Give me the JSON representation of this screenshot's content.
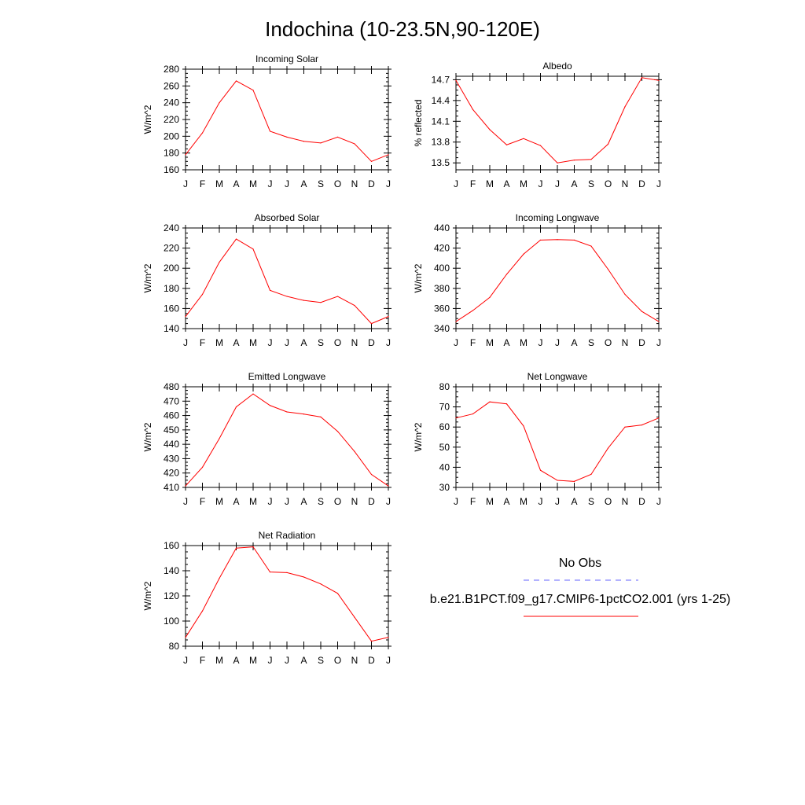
{
  "title": "Indochina (10-23.5N,90-120E)",
  "legend": {
    "obs_label": "No Obs",
    "obs_color": "#6666ff",
    "model_label": "b.e21.B1PCT.f09_g17.CMIP6-1pctCO2.001 (yrs 1-25)",
    "model_color": "#ff0000"
  },
  "chart_data": [
    {
      "type": "line",
      "title": "Incoming Solar",
      "ylabel": "W/m^2",
      "categories": [
        "J",
        "F",
        "M",
        "A",
        "M",
        "J",
        "J",
        "A",
        "S",
        "O",
        "N",
        "D",
        "J"
      ],
      "ylim": [
        160,
        280
      ],
      "yticks": [
        "160",
        "180",
        "200",
        "220",
        "240",
        "260",
        "280"
      ],
      "series": [
        {
          "values": [
            178,
            204,
            240,
            266,
            255,
            206,
            199,
            194,
            192,
            199,
            191,
            170,
            178
          ]
        }
      ]
    },
    {
      "type": "line",
      "title": "Albedo",
      "ylabel": "% reflected",
      "categories": [
        "J",
        "F",
        "M",
        "A",
        "M",
        "J",
        "J",
        "A",
        "S",
        "O",
        "N",
        "D",
        "J"
      ],
      "ylim": [
        13.4,
        14.75
      ],
      "yticks": [
        "13.5",
        "13.8",
        "14.1",
        "14.4",
        "14.7"
      ],
      "series": [
        {
          "values": [
            14.69,
            14.27,
            13.98,
            13.76,
            13.85,
            13.75,
            13.5,
            13.54,
            13.55,
            13.77,
            14.31,
            14.73,
            14.69
          ]
        }
      ]
    },
    {
      "type": "line",
      "title": "Absorbed Solar",
      "ylabel": "W/m^2",
      "categories": [
        "J",
        "F",
        "M",
        "A",
        "M",
        "J",
        "J",
        "A",
        "S",
        "O",
        "N",
        "D",
        "J"
      ],
      "ylim": [
        140,
        240
      ],
      "yticks": [
        "140",
        "160",
        "180",
        "200",
        "220",
        "240"
      ],
      "series": [
        {
          "values": [
            152,
            174,
            206,
            229,
            219,
            178,
            172,
            168,
            166,
            172,
            163,
            145,
            152
          ]
        }
      ]
    },
    {
      "type": "line",
      "title": "Incoming Longwave",
      "ylabel": "W/m^2",
      "categories": [
        "J",
        "F",
        "M",
        "A",
        "M",
        "J",
        "J",
        "A",
        "S",
        "O",
        "N",
        "D",
        "J"
      ],
      "ylim": [
        340,
        440
      ],
      "yticks": [
        "340",
        "360",
        "380",
        "400",
        "420",
        "440"
      ],
      "series": [
        {
          "values": [
            347,
            358,
            371,
            394,
            414,
            428,
            428.5,
            428,
            422,
            399,
            374,
            357,
            347
          ]
        }
      ]
    },
    {
      "type": "line",
      "title": "Emitted Longwave",
      "ylabel": "W/m^2",
      "categories": [
        "J",
        "F",
        "M",
        "A",
        "M",
        "J",
        "J",
        "A",
        "S",
        "O",
        "N",
        "D",
        "J"
      ],
      "ylim": [
        410,
        480
      ],
      "yticks": [
        "410",
        "420",
        "430",
        "440",
        "450",
        "460",
        "470",
        "480"
      ],
      "series": [
        {
          "values": [
            411,
            424,
            444,
            466,
            475,
            467,
            462.5,
            461,
            459,
            449,
            435,
            419,
            411
          ]
        }
      ]
    },
    {
      "type": "line",
      "title": "Net Longwave",
      "ylabel": "W/m^2",
      "categories": [
        "J",
        "F",
        "M",
        "A",
        "M",
        "J",
        "J",
        "A",
        "S",
        "O",
        "N",
        "D",
        "J"
      ],
      "ylim": [
        30,
        80
      ],
      "yticks": [
        "30",
        "40",
        "50",
        "60",
        "70",
        "80"
      ],
      "series": [
        {
          "values": [
            64.5,
            66.5,
            72.5,
            71.5,
            60.5,
            38.5,
            33.5,
            33,
            36.5,
            49.5,
            60,
            61,
            64.5
          ]
        }
      ]
    },
    {
      "type": "line",
      "title": "Net Radiation",
      "ylabel": "W/m^2",
      "categories": [
        "J",
        "F",
        "M",
        "A",
        "M",
        "J",
        "J",
        "A",
        "S",
        "O",
        "N",
        "D",
        "J"
      ],
      "ylim": [
        80,
        160
      ],
      "yticks": [
        "80",
        "100",
        "120",
        "140",
        "160"
      ],
      "series": [
        {
          "values": [
            87,
            108,
            134,
            158,
            159,
            139,
            138.5,
            135,
            129.5,
            122,
            103,
            84,
            87
          ]
        }
      ]
    }
  ]
}
